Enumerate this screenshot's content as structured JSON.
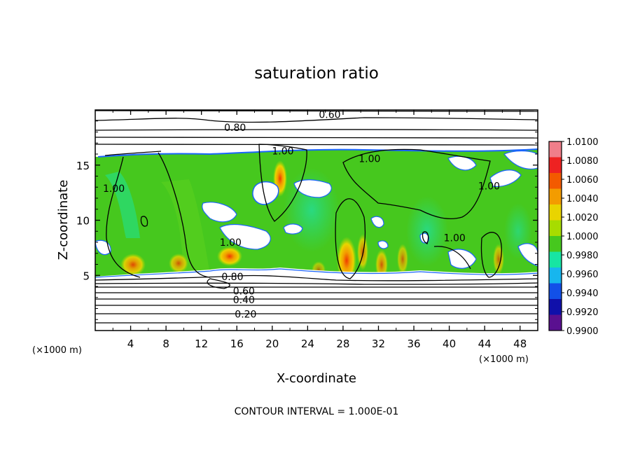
{
  "chart_data": {
    "type": "heatmap",
    "title": "saturation ratio",
    "xlabel": "X-coordinate",
    "ylabel": "Z-coordinate",
    "x_unit": "(×1000 m)",
    "x_unit_left": "(×1000 m)",
    "xlim": [
      0,
      50
    ],
    "ylim": [
      0,
      20
    ],
    "x_ticks": [
      4,
      8,
      12,
      16,
      20,
      24,
      28,
      32,
      36,
      40,
      44,
      48
    ],
    "y_ticks": [
      5,
      10,
      15
    ],
    "footer": "CONTOUR INTERVAL = 1.000E-01",
    "colorbar": {
      "labels": [
        "1.0100",
        "1.0080",
        "1.0060",
        "1.0040",
        "1.0020",
        "1.0000",
        "0.9980",
        "0.9960",
        "0.9940",
        "0.9920",
        "0.9900"
      ],
      "colors": [
        "#f07e8a",
        "#ee2222",
        "#f35a00",
        "#f39c00",
        "#e9d400",
        "#a7dc00",
        "#46c81e",
        "#17e5a3",
        "#17b6ee",
        "#1250e8",
        "#1010aa",
        "#5a1090"
      ]
    },
    "contour_labels": [
      {
        "text": "0.60",
        "x": 26.5,
        "z": 19.6
      },
      {
        "text": "0.80",
        "x": 15.8,
        "z": 18.4
      },
      {
        "text": "1.00",
        "x": 21.2,
        "z": 16.3
      },
      {
        "text": "1.00",
        "x": 31.0,
        "z": 15.6
      },
      {
        "text": "1.00",
        "x": 2.1,
        "z": 12.9
      },
      {
        "text": "1.00",
        "x": 15.3,
        "z": 8.0
      },
      {
        "text": "1.00",
        "x": 40.6,
        "z": 8.4
      },
      {
        "text": "1.00",
        "x": 44.5,
        "z": 13.1
      },
      {
        "text": "0.80",
        "x": 15.5,
        "z": 4.9
      },
      {
        "text": "0.60",
        "x": 16.8,
        "z": 3.6
      },
      {
        "text": "0.40",
        "x": 16.8,
        "z": 2.8
      },
      {
        "text": "0.20",
        "x": 17.0,
        "z": 1.5
      }
    ]
  }
}
